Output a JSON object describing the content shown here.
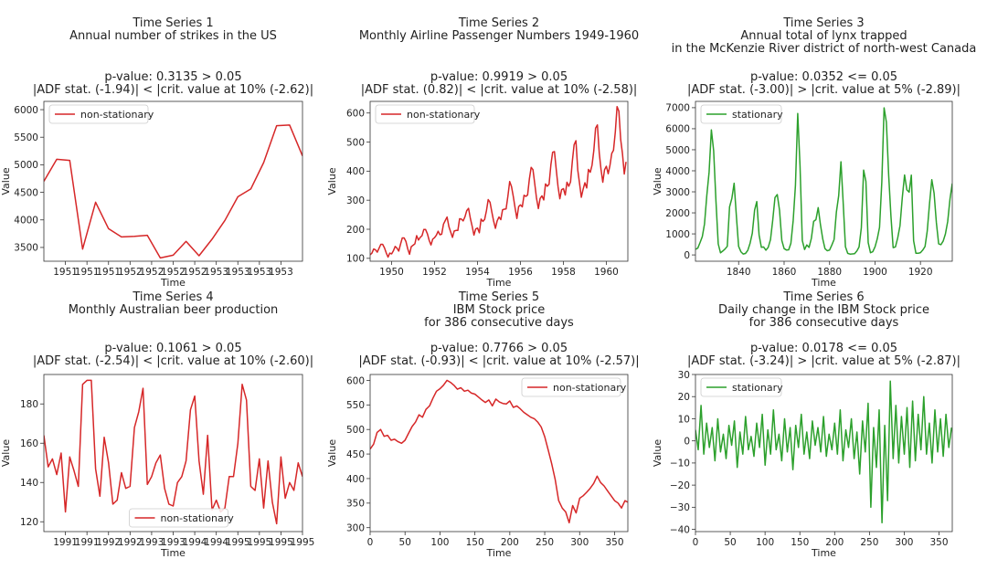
{
  "colors": {
    "nonstationary": "#d62728",
    "stationary": "#2ca02c",
    "axis": "#333333"
  },
  "chart_data": [
    {
      "type": "line",
      "title": "Time Series 1",
      "subtitle": [
        "Annual number of strikes in the US"
      ],
      "stat_line1": "p-value: 0.3135 > 0.05",
      "stat_line2": "|ADF stat. (-1.94)| < |crit. value at 10% (-2.62)|",
      "xlabel": "Time",
      "ylabel": "Value",
      "status": "non-stationary",
      "legend_pos": "upper-left",
      "xlim": [
        0,
        12
      ],
      "ylim": [
        3250,
        6150
      ],
      "xticks": [
        1,
        2,
        3,
        4,
        5,
        6,
        7,
        8,
        9,
        10,
        11
      ],
      "xticklabels": [
        "1951",
        "1951",
        "1951",
        "1952",
        "1952",
        "1952",
        "1952",
        "1953",
        "1953",
        "1953",
        "1953"
      ],
      "yticks": [
        3500,
        4000,
        4500,
        5000,
        5500,
        6000
      ],
      "yticklabels": [
        "3500",
        "4000",
        "4500",
        "5000",
        "5500",
        "6000"
      ],
      "x": [
        0,
        0.6,
        1.2,
        1.8,
        2.4,
        3.0,
        3.6,
        4.2,
        4.8,
        5.4,
        6.0,
        6.6,
        7.2,
        7.8,
        8.4,
        9.0,
        9.6,
        10.2,
        10.8,
        11.4,
        12.0
      ],
      "values": [
        4700,
        5100,
        5080,
        3470,
        4320,
        3840,
        3690,
        3700,
        3720,
        3310,
        3360,
        3610,
        3350,
        3650,
        3990,
        4420,
        4560,
        5040,
        5710,
        5720,
        5160
      ]
    },
    {
      "type": "line",
      "title": "Time Series 2",
      "subtitle": [
        "Monthly Airline Passenger Numbers 1949-1960"
      ],
      "stat_line1": "p-value: 0.9919 > 0.05",
      "stat_line2": "|ADF stat. (0.82)| < |crit. value at 10% (-2.58)|",
      "xlabel": "Time",
      "ylabel": "Value",
      "status": "non-stationary",
      "legend_pos": "upper-left",
      "xlim": [
        1949,
        1961
      ],
      "ylim": [
        90,
        640
      ],
      "xticks": [
        1950,
        1952,
        1954,
        1956,
        1958,
        1960
      ],
      "xticklabels": [
        "1950",
        "1952",
        "1954",
        "1956",
        "1958",
        "1960"
      ],
      "yticks": [
        100,
        200,
        300,
        400,
        500,
        600
      ],
      "yticklabels": [
        "100",
        "200",
        "300",
        "400",
        "500",
        "600"
      ],
      "x0": 1949,
      "dx": 0.0833333,
      "values": [
        112,
        118,
        132,
        129,
        121,
        135,
        148,
        148,
        136,
        119,
        104,
        118,
        115,
        126,
        141,
        135,
        125,
        149,
        170,
        170,
        158,
        133,
        114,
        140,
        145,
        150,
        178,
        163,
        172,
        178,
        199,
        199,
        184,
        162,
        146,
        166,
        171,
        180,
        193,
        181,
        183,
        218,
        230,
        242,
        209,
        191,
        172,
        194,
        196,
        196,
        236,
        235,
        229,
        243,
        264,
        272,
        237,
        211,
        180,
        201,
        204,
        188,
        235,
        227,
        234,
        264,
        302,
        293,
        259,
        229,
        203,
        229,
        242,
        233,
        267,
        269,
        270,
        315,
        364,
        347,
        312,
        274,
        237,
        278,
        284,
        277,
        317,
        313,
        318,
        374,
        413,
        405,
        355,
        306,
        271,
        306,
        315,
        301,
        356,
        348,
        355,
        422,
        465,
        467,
        404,
        347,
        305,
        336,
        340,
        318,
        362,
        348,
        363,
        435,
        491,
        505,
        404,
        359,
        310,
        337,
        360,
        342,
        406,
        396,
        420,
        472,
        548,
        559,
        463,
        407,
        362,
        405,
        417,
        391,
        419,
        461,
        472,
        535,
        622,
        606,
        508,
        461,
        390,
        432
      ]
    },
    {
      "type": "line",
      "title": "Time Series 3",
      "subtitle": [
        "Annual total of lynx trapped",
        "in the McKenzie River district of north-west Canada"
      ],
      "stat_line1": "p-value: 0.0352 <= 0.05",
      "stat_line2": "|ADF stat. (-3.00)| > |crit. value at 5% (-2.89)|",
      "xlabel": "Time",
      "ylabel": "Value",
      "status": "stationary",
      "legend_pos": "upper-left",
      "xlim": [
        1821,
        1934
      ],
      "ylim": [
        -300,
        7300
      ],
      "xticks": [
        1840,
        1860,
        1880,
        1900,
        1920
      ],
      "xticklabels": [
        "1840",
        "1860",
        "1880",
        "1900",
        "1920"
      ],
      "yticks": [
        0,
        1000,
        2000,
        3000,
        4000,
        5000,
        6000,
        7000
      ],
      "yticklabels": [
        "0",
        "1000",
        "2000",
        "3000",
        "4000",
        "5000",
        "6000",
        "7000"
      ],
      "x0": 1821,
      "dx": 1,
      "values": [
        269,
        321,
        585,
        871,
        1475,
        2821,
        3928,
        5943,
        4950,
        2577,
        523,
        98,
        184,
        279,
        409,
        2285,
        2685,
        3409,
        1824,
        409,
        151,
        45,
        68,
        213,
        546,
        1033,
        2129,
        2536,
        957,
        361,
        377,
        225,
        360,
        731,
        1638,
        2725,
        2871,
        2119,
        684,
        299,
        236,
        245,
        552,
        1623,
        3311,
        6721,
        4254,
        687,
        255,
        473,
        358,
        784,
        1594,
        1676,
        2251,
        1426,
        756,
        299,
        201,
        229,
        469,
        736,
        2042,
        2811,
        4431,
        2511,
        389,
        73,
        39,
        49,
        59,
        188,
        377,
        1292,
        4031,
        3495,
        587,
        105,
        153,
        387,
        758,
        1307,
        3465,
        6991,
        6313,
        3794,
        1836,
        345,
        382,
        808,
        1388,
        2713,
        3800,
        3091,
        2985,
        3790,
        674,
        81,
        80,
        108,
        229,
        399,
        1132,
        2432,
        3574,
        2935,
        1537,
        529,
        485,
        662,
        1000,
        1590,
        2657,
        3396
      ]
    },
    {
      "type": "line",
      "title": "Time Series 4",
      "subtitle": [
        "Monthly Australian beer production"
      ],
      "stat_line1": "p-value: 0.1061 > 0.05",
      "stat_line2": "|ADF stat. (-2.54)| < |crit. value at 10% (-2.60)|",
      "xlabel": "Time",
      "ylabel": "Value",
      "status": "non-stationary",
      "legend_pos": "lower-center",
      "xlim": [
        0,
        12
      ],
      "ylim": [
        115,
        195
      ],
      "xticks": [
        1,
        2,
        3,
        4,
        5,
        6,
        7,
        8,
        9,
        10,
        11,
        12
      ],
      "xticklabels": [
        "1991",
        "1991",
        "1992",
        "1992",
        "1993",
        "1993",
        "1994",
        "1994",
        "1995",
        "1995",
        "1995",
        "1995"
      ],
      "yticks": [
        120,
        140,
        160,
        180
      ],
      "yticklabels": [
        "120",
        "140",
        "160",
        "180"
      ],
      "x": [
        0,
        0.2,
        0.4,
        0.6,
        0.8,
        1.0,
        1.2,
        1.4,
        1.6,
        1.8,
        2.0,
        2.2,
        2.4,
        2.6,
        2.8,
        3.0,
        3.2,
        3.4,
        3.6,
        3.8,
        4.0,
        4.2,
        4.4,
        4.6,
        4.8,
        5.0,
        5.2,
        5.4,
        5.6,
        5.8,
        6.0,
        6.2,
        6.4,
        6.6,
        6.8,
        7.0,
        7.2,
        7.4,
        7.6,
        7.8,
        8.0,
        8.2,
        8.4,
        8.6,
        8.8,
        9.0,
        9.2,
        9.4,
        9.6,
        9.8,
        10.0,
        10.2,
        10.4,
        10.6,
        10.8,
        11.0,
        11.2,
        11.4,
        11.6,
        11.8,
        12.0
      ],
      "values": [
        164,
        148,
        152,
        144,
        155,
        125,
        153,
        146,
        138,
        190,
        192,
        192,
        147,
        133,
        163,
        150,
        129,
        131,
        145,
        137,
        138,
        168,
        176,
        188,
        139,
        143,
        150,
        154,
        137,
        129,
        128,
        140,
        143,
        151,
        177,
        184,
        151,
        134,
        164,
        126,
        131,
        125,
        127,
        143,
        143,
        160,
        190,
        182,
        138,
        136,
        152,
        127,
        151,
        130,
        119,
        153,
        132,
        140,
        136,
        150,
        143
      ]
    },
    {
      "type": "line",
      "title": "Time Series 5",
      "subtitle": [
        "IBM Stock price",
        "for 386 consecutive days"
      ],
      "stat_line1": "p-value: 0.7766 > 0.05",
      "stat_line2": "|ADF stat. (-0.93)| < |crit. value at 10% (-2.57)|",
      "xlabel": "Time",
      "ylabel": "Value",
      "status": "non-stationary",
      "legend_pos": "upper-right",
      "xlim": [
        0,
        369
      ],
      "ylim": [
        292,
        612
      ],
      "xticks": [
        0,
        50,
        100,
        150,
        200,
        250,
        300,
        350
      ],
      "xticklabels": [
        "0",
        "50",
        "100",
        "150",
        "200",
        "250",
        "300",
        "350"
      ],
      "yticks": [
        300,
        350,
        400,
        450,
        500,
        550,
        600
      ],
      "yticklabels": [
        "300",
        "350",
        "400",
        "450",
        "500",
        "550",
        "600"
      ],
      "x": [
        0,
        5,
        10,
        15,
        20,
        25,
        30,
        35,
        40,
        45,
        50,
        55,
        60,
        65,
        70,
        75,
        80,
        85,
        90,
        95,
        100,
        105,
        110,
        115,
        120,
        125,
        130,
        135,
        140,
        145,
        150,
        155,
        160,
        165,
        170,
        175,
        180,
        185,
        190,
        195,
        200,
        205,
        210,
        215,
        220,
        225,
        230,
        235,
        240,
        245,
        250,
        255,
        260,
        265,
        270,
        275,
        280,
        285,
        290,
        295,
        300,
        305,
        310,
        315,
        320,
        325,
        330,
        335,
        340,
        345,
        350,
        355,
        360,
        365,
        369
      ],
      "values": [
        460,
        470,
        494,
        500,
        486,
        488,
        478,
        480,
        475,
        472,
        478,
        492,
        506,
        515,
        530,
        525,
        541,
        548,
        564,
        578,
        583,
        590,
        600,
        596,
        590,
        582,
        585,
        578,
        580,
        574,
        572,
        566,
        560,
        555,
        560,
        548,
        562,
        556,
        553,
        552,
        558,
        545,
        548,
        542,
        535,
        530,
        525,
        522,
        515,
        505,
        485,
        458,
        430,
        398,
        355,
        340,
        332,
        310,
        345,
        330,
        360,
        365,
        372,
        380,
        390,
        405,
        392,
        385,
        375,
        365,
        355,
        350,
        340,
        355,
        352
      ]
    },
    {
      "type": "line",
      "title": "Time Series 6",
      "subtitle": [
        "Daily change in the IBM Stock price",
        "for 386 consecutive days"
      ],
      "stat_line1": "p-value: 0.0178 <= 0.05",
      "stat_line2": "|ADF stat. (-3.24)| > |crit. value at 5% (-2.87)|",
      "xlabel": "Time",
      "ylabel": "Value",
      "status": "stationary",
      "legend_pos": "upper-left",
      "xlim": [
        0,
        369
      ],
      "ylim": [
        -41,
        30
      ],
      "xticks": [
        0,
        50,
        100,
        150,
        200,
        250,
        300,
        350
      ],
      "xticklabels": [
        "0",
        "50",
        "100",
        "150",
        "200",
        "250",
        "300",
        "350"
      ],
      "yticks": [
        -40,
        -30,
        -20,
        -10,
        0,
        10,
        20,
        30
      ],
      "yticklabels": [
        "−40",
        "−30",
        "−20",
        "−10",
        "0",
        "10",
        "20",
        "30"
      ],
      "x": [
        0,
        4,
        8,
        12,
        16,
        20,
        24,
        28,
        32,
        36,
        40,
        44,
        48,
        52,
        56,
        60,
        64,
        68,
        72,
        76,
        80,
        84,
        88,
        92,
        96,
        100,
        104,
        108,
        112,
        116,
        120,
        124,
        128,
        132,
        136,
        140,
        144,
        148,
        152,
        156,
        160,
        164,
        168,
        172,
        176,
        180,
        184,
        188,
        192,
        196,
        200,
        204,
        208,
        212,
        216,
        220,
        224,
        228,
        232,
        236,
        240,
        244,
        248,
        252,
        256,
        260,
        264,
        268,
        272,
        276,
        280,
        284,
        288,
        292,
        296,
        300,
        304,
        308,
        312,
        316,
        320,
        324,
        328,
        332,
        336,
        340,
        344,
        348,
        352,
        356,
        360,
        364,
        368
      ],
      "values": [
        5,
        -4,
        16,
        -6,
        8,
        -3,
        6,
        -9,
        10,
        -5,
        3,
        -8,
        7,
        -2,
        9,
        -12,
        4,
        -6,
        11,
        -4,
        2,
        -7,
        8,
        -3,
        12,
        -11,
        5,
        -6,
        14,
        -4,
        3,
        -9,
        10,
        -5,
        6,
        -13,
        7,
        -3,
        12,
        -6,
        4,
        -8,
        9,
        -2,
        6,
        -5,
        11,
        -7,
        3,
        -4,
        8,
        -6,
        14,
        -9,
        5,
        -3,
        10,
        -8,
        4,
        -15,
        9,
        -5,
        17,
        -30,
        6,
        -12,
        14,
        -37,
        7,
        -27,
        27,
        -8,
        16,
        -10,
        11,
        -6,
        15,
        -12,
        18,
        -9,
        12,
        -4,
        20,
        -6,
        8,
        -10,
        14,
        -5,
        10,
        -7,
        12,
        -3,
        6
      ]
    }
  ]
}
